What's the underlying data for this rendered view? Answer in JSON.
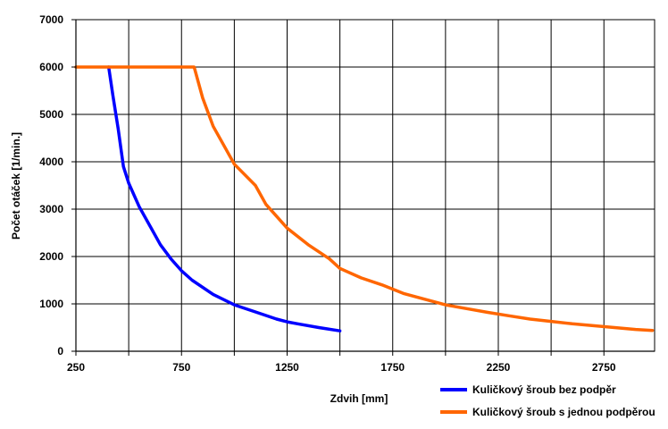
{
  "chart_data": {
    "type": "line",
    "xlabel": "Zdvih [mm]",
    "ylabel": "Počet otáček [1/min.]",
    "xlim": [
      250,
      2990
    ],
    "ylim": [
      0,
      7000
    ],
    "x_ticks": [
      250,
      500,
      750,
      1000,
      1250,
      1500,
      1750,
      2000,
      2250,
      2500,
      2750
    ],
    "x_tick_labels": [
      "250",
      "",
      "750",
      "",
      "1250",
      "",
      "1750",
      "",
      "2250",
      "",
      "2750"
    ],
    "y_ticks": [
      0,
      1000,
      2000,
      3000,
      4000,
      5000,
      6000,
      7000
    ],
    "y_tick_labels": [
      "0",
      "1000",
      "2000",
      "3000",
      "4000",
      "5000",
      "6000",
      "7000"
    ],
    "grid": true,
    "legend_position": "bottom-right",
    "series": [
      {
        "name": "Kuličkový šroub bez podpěr",
        "color": "#0000ff",
        "points": [
          [
            405,
            6000
          ],
          [
            425,
            5400
          ],
          [
            450,
            4700
          ],
          [
            475,
            3900
          ],
          [
            500,
            3550
          ],
          [
            550,
            3050
          ],
          [
            600,
            2650
          ],
          [
            650,
            2250
          ],
          [
            700,
            1950
          ],
          [
            750,
            1700
          ],
          [
            800,
            1500
          ],
          [
            900,
            1200
          ],
          [
            1000,
            980
          ],
          [
            1100,
            830
          ],
          [
            1200,
            680
          ],
          [
            1250,
            620
          ],
          [
            1300,
            580
          ],
          [
            1400,
            500
          ],
          [
            1500,
            430
          ]
        ]
      },
      {
        "name": "Kuličkový šroub s jednou podpěrou",
        "color": "#ff6600",
        "points": [
          [
            250,
            6000
          ],
          [
            810,
            6000
          ],
          [
            850,
            5350
          ],
          [
            900,
            4750
          ],
          [
            1000,
            3950
          ],
          [
            1100,
            3500
          ],
          [
            1150,
            3100
          ],
          [
            1250,
            2600
          ],
          [
            1350,
            2250
          ],
          [
            1450,
            1950
          ],
          [
            1500,
            1750
          ],
          [
            1600,
            1550
          ],
          [
            1700,
            1400
          ],
          [
            1800,
            1220
          ],
          [
            1900,
            1100
          ],
          [
            2000,
            980
          ],
          [
            2100,
            900
          ],
          [
            2200,
            820
          ],
          [
            2300,
            750
          ],
          [
            2400,
            680
          ],
          [
            2500,
            630
          ],
          [
            2600,
            580
          ],
          [
            2700,
            540
          ],
          [
            2800,
            500
          ],
          [
            2900,
            460
          ],
          [
            2980,
            440
          ]
        ]
      }
    ]
  }
}
